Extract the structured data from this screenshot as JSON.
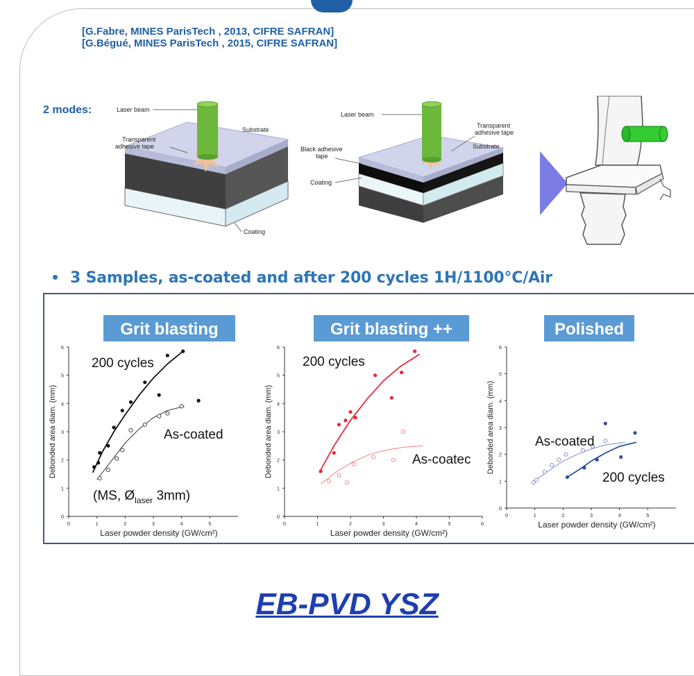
{
  "references": [
    "[G.Fabre, MINES ParisTech , 2013, CIFRE SAFRAN]",
    "[G.Bégué, MINES ParisTech , 2015, CIFRE SAFRAN]"
  ],
  "modes_label": "2 modes:",
  "diagram1": {
    "laser_beam": "Laser beam",
    "transparent_tape": [
      "Transparent",
      "adhesive tape"
    ],
    "substrate": "Substrate",
    "coating": "Coating"
  },
  "diagram2": {
    "laser_beam": "Laser beam",
    "transparent_tape": [
      "Transparent",
      "adhesive tape"
    ],
    "substrate": "Substrate",
    "black_tape": [
      "Black adhesive",
      "tape"
    ],
    "coating": "Coating"
  },
  "colors": {
    "brand_blue": "#1f5fa6",
    "bullet_blue": "#2e75b6",
    "title_box": "#5b9bd5",
    "laser_green": "#6bb83a",
    "arrow_purple": "#7b7be6",
    "footer_blue": "#1f3fb0"
  },
  "bullet": "3 Samples, as-coated and after 200 cycles 1H/1100°C/Air",
  "chart_data": [
    {
      "type": "scatter",
      "title": "Grit blasting",
      "xlabel": "Laser powder density (GW/cm²)",
      "ylabel": "Debonded area diam. (mm)",
      "xlim": [
        0,
        6
      ],
      "ylim": [
        0,
        6
      ],
      "xticks": [
        "0",
        "1",
        "2",
        "3",
        "4",
        "5"
      ],
      "yticks": [
        "0",
        "1",
        "2",
        "3",
        "4",
        "5",
        "6"
      ],
      "annotation": {
        "pre": "(MS, Ø",
        "sub": "laser",
        "post": " 3mm)"
      },
      "series": [
        {
          "name": "200 cycles",
          "marker": "filled",
          "color": "#111111",
          "x": [
            0.9,
            1.05,
            1.1,
            1.4,
            1.6,
            1.9,
            2.2,
            2.7,
            3.2,
            3.5,
            4.05,
            4.6
          ],
          "y": [
            1.75,
            1.9,
            2.25,
            2.5,
            3.15,
            3.75,
            4.05,
            4.75,
            4.3,
            5.7,
            5.85,
            4.1
          ],
          "fit_x": [
            0.85,
            1.2,
            1.6,
            2.0,
            2.5,
            3.0,
            3.5,
            4.05
          ],
          "fit_y": [
            1.55,
            2.3,
            3.0,
            3.6,
            4.3,
            4.9,
            5.4,
            5.85
          ]
        },
        {
          "name": "As-coated",
          "marker": "open",
          "color": "#444444",
          "x": [
            1.1,
            1.4,
            1.7,
            1.9,
            2.2,
            2.7,
            3.2,
            3.5,
            4.0
          ],
          "y": [
            1.35,
            1.65,
            2.05,
            2.35,
            3.05,
            3.25,
            3.55,
            3.65,
            3.9
          ],
          "fit_x": [
            1.0,
            1.5,
            2.0,
            2.5,
            3.0,
            3.5,
            4.1
          ],
          "fit_y": [
            1.3,
            1.95,
            2.6,
            3.1,
            3.5,
            3.75,
            3.9
          ]
        }
      ]
    },
    {
      "type": "scatter",
      "title": "Grit blasting ++",
      "xlabel": "Laser powder density (GW/cm²)",
      "ylabel": "Debonded area diam. (mm)",
      "xlim": [
        0,
        6
      ],
      "ylim": [
        0,
        6
      ],
      "xticks": [
        "0",
        "1",
        "2",
        "3",
        "4",
        "5",
        "6"
      ],
      "yticks": [
        "0",
        "1",
        "2",
        "3",
        "4",
        "5",
        "6"
      ],
      "series": [
        {
          "name": "200 cycles",
          "marker": "filled",
          "color": "#e8283c",
          "x": [
            1.1,
            1.5,
            1.65,
            1.85,
            2.0,
            2.15,
            2.75,
            3.25,
            3.55,
            3.95
          ],
          "y": [
            1.6,
            2.25,
            3.25,
            3.4,
            3.7,
            3.5,
            5.0,
            4.2,
            5.1,
            5.85
          ],
          "fit_x": [
            1.05,
            1.5,
            2.0,
            2.5,
            3.0,
            3.5,
            4.1
          ],
          "fit_y": [
            1.55,
            2.5,
            3.4,
            4.15,
            4.8,
            5.3,
            5.75
          ]
        },
        {
          "name": "As-coatec",
          "marker": "open",
          "color": "#f08a94",
          "x": [
            1.35,
            1.65,
            1.9,
            2.1,
            2.7,
            3.3,
            3.6
          ],
          "y": [
            1.25,
            1.45,
            1.2,
            1.85,
            2.1,
            2.0,
            3.0
          ],
          "fit_x": [
            1.1,
            1.6,
            2.1,
            2.6,
            3.1,
            3.6,
            4.2
          ],
          "fit_y": [
            1.15,
            1.6,
            1.95,
            2.2,
            2.35,
            2.45,
            2.5
          ]
        }
      ]
    },
    {
      "type": "scatter",
      "title": "Polished",
      "xlabel": "Laser powder density (GW/cm²)",
      "ylabel": "Debonded area diam. (mm)",
      "xlim": [
        0,
        6
      ],
      "ylim": [
        0,
        6
      ],
      "xticks": [
        "0",
        "1",
        "2",
        "3",
        "4",
        "5"
      ],
      "yticks": [
        "0",
        "1",
        "2",
        "3",
        "4",
        "5",
        "6"
      ],
      "series": [
        {
          "name": "As-coated",
          "marker": "open",
          "color": "#8b93c9",
          "x": [
            0.95,
            1.05,
            1.35,
            1.6,
            1.85,
            2.1,
            2.7,
            3.05,
            3.5
          ],
          "y": [
            0.95,
            1.05,
            1.35,
            1.6,
            1.8,
            2.0,
            2.15,
            2.3,
            2.5
          ],
          "fit_x": [
            0.9,
            1.5,
            2.0,
            2.5,
            3.0,
            3.5,
            4.2
          ],
          "fit_y": [
            0.95,
            1.4,
            1.75,
            2.0,
            2.2,
            2.35,
            2.45
          ]
        },
        {
          "name": "200 cycles",
          "marker": "filled",
          "color": "#2f4fa0",
          "x": [
            2.15,
            2.75,
            3.2,
            3.5,
            4.05,
            4.55
          ],
          "y": [
            1.15,
            1.5,
            1.8,
            3.15,
            1.9,
            2.8
          ],
          "fit_x": [
            2.15,
            2.6,
            3.0,
            3.5,
            4.0,
            4.6
          ],
          "fit_y": [
            1.15,
            1.45,
            1.75,
            2.05,
            2.3,
            2.45
          ]
        }
      ]
    }
  ],
  "footer": "EB-PVD YSZ"
}
